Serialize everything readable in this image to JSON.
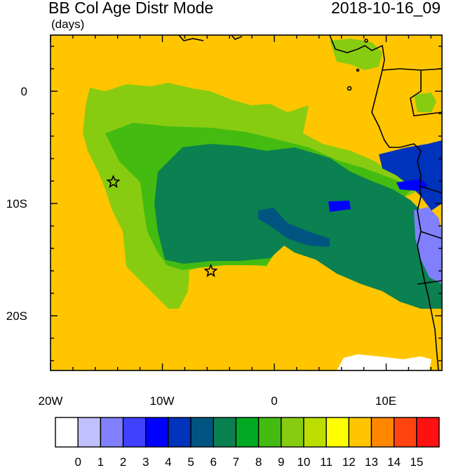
{
  "header": {
    "title": "BB Col Age Distr Mode",
    "units": "(days)",
    "date": "2018-10-16_09"
  },
  "axes": {
    "x_labels": [
      "20W",
      "10W",
      "0",
      "10E"
    ],
    "y_labels": [
      "0",
      "10S",
      "20S"
    ]
  },
  "colorbar": {
    "labels": [
      "0",
      "1",
      "2",
      "3",
      "4",
      "5",
      "6",
      "7",
      "8",
      "9",
      "10",
      "11",
      "12",
      "13",
      "14",
      "15"
    ],
    "colors": [
      "#ffffff",
      "#c0c0ff",
      "#8080ff",
      "#4040ff",
      "#0000ff",
      "#0033bb",
      "#005580",
      "#0b8050",
      "#00aa22",
      "#44bb11",
      "#88cc11",
      "#bbdd00",
      "#ffff00",
      "#ffc600",
      "#ff8800",
      "#ff4411",
      "#ff1111"
    ]
  },
  "map_colors": {
    "background": "#ffc600",
    "green_light": "#88cc11",
    "green_mid": "#44bb11",
    "green_dark": "#0b8050",
    "blue_dark": "#005580",
    "navy": "#0033bb",
    "blue": "#0000ff",
    "lavender": "#8080ff",
    "white": "#ffffff"
  },
  "markers": [
    {
      "name": "star-marker-west"
    },
    {
      "name": "star-marker-south"
    }
  ]
}
